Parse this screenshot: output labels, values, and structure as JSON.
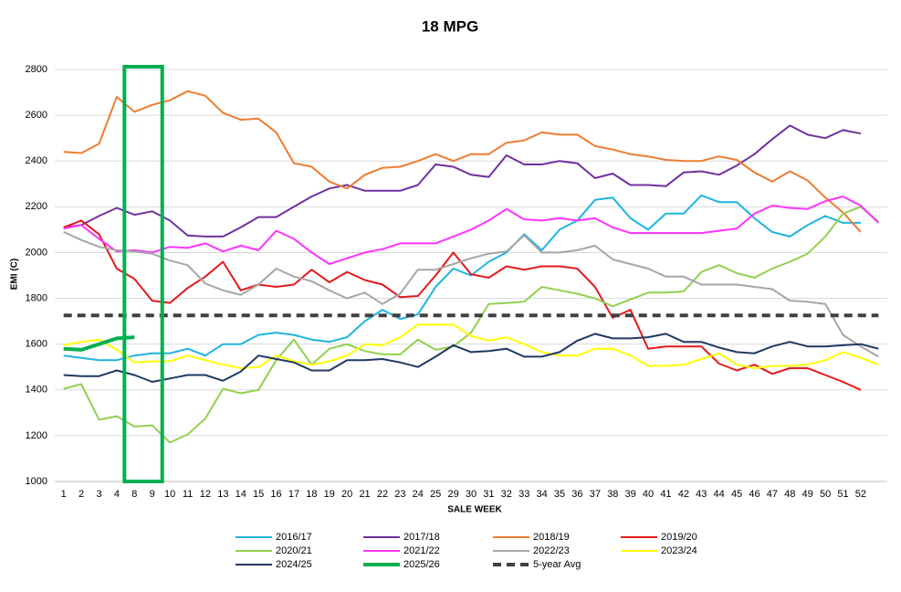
{
  "chart_data": {
    "type": "line",
    "title": "18 MPG",
    "x_label": "SALE WEEK",
    "y_label": "EMI (C)",
    "categories": [
      1,
      2,
      3,
      4,
      8,
      9,
      10,
      11,
      12,
      13,
      14,
      15,
      16,
      17,
      18,
      19,
      20,
      21,
      22,
      23,
      24,
      25,
      29,
      30,
      31,
      32,
      33,
      34,
      35,
      36,
      37,
      38,
      39,
      40,
      41,
      42,
      43,
      44,
      45,
      46,
      47,
      48,
      49,
      50,
      51,
      52,
      null
    ],
    "ylim": [
      1000,
      2800
    ],
    "yticks": [
      1000,
      1200,
      1400,
      1600,
      1800,
      2000,
      2200,
      2400,
      2600,
      2800
    ],
    "grid": true,
    "legend": "bottom",
    "series": [
      {
        "name": "2016/17",
        "color": "#1fb4e0",
        "values": [
          1550,
          1540,
          1530,
          1530,
          1550,
          1560,
          1560,
          1580,
          1550,
          1600,
          1600,
          1640,
          1650,
          1640,
          1620,
          1610,
          1630,
          1700,
          1750,
          1710,
          1730,
          1850,
          1930,
          1900,
          1960,
          2000,
          2080,
          2010,
          2100,
          2140,
          2230,
          2240,
          2150,
          2100,
          2170,
          2170,
          2250,
          2220,
          2220,
          2150,
          2090,
          2070,
          2120,
          2160,
          2130,
          2130,
          null
        ]
      },
      {
        "name": "2017/18",
        "color": "#7030a0",
        "values": [
          2110,
          2120,
          2160,
          2195,
          2165,
          2180,
          2140,
          2075,
          2070,
          2070,
          2110,
          2155,
          2155,
          2200,
          2245,
          2280,
          2295,
          2270,
          2270,
          2270,
          2295,
          2385,
          2375,
          2340,
          2330,
          2425,
          2385,
          2385,
          2400,
          2390,
          2325,
          2345,
          2295,
          2295,
          2290,
          2350,
          2355,
          2340,
          2380,
          2430,
          2495,
          2555,
          2515,
          2500,
          2535,
          2520,
          null
        ]
      },
      {
        "name": "2018/19",
        "color": "#ed7d31",
        "values": [
          2440,
          2435,
          2475,
          2680,
          2615,
          2645,
          2665,
          2705,
          2685,
          2610,
          2580,
          2585,
          2525,
          2390,
          2375,
          2310,
          2280,
          2340,
          2370,
          2375,
          2400,
          2430,
          2400,
          2430,
          2430,
          2480,
          2490,
          2525,
          2515,
          2515,
          2465,
          2450,
          2430,
          2420,
          2405,
          2400,
          2400,
          2420,
          2405,
          2350,
          2310,
          2355,
          2315,
          2240,
          2175,
          2090,
          null
        ]
      },
      {
        "name": "2019/20",
        "color": "#e31a1c",
        "values": [
          2110,
          2140,
          2080,
          1930,
          1885,
          1790,
          1780,
          1845,
          1895,
          1960,
          1835,
          1860,
          1850,
          1860,
          1925,
          1870,
          1915,
          1880,
          1860,
          1805,
          1810,
          1900,
          2000,
          1905,
          1890,
          1940,
          1925,
          1940,
          1940,
          1930,
          1850,
          1715,
          1750,
          1580,
          1590,
          1590,
          1590,
          1515,
          1485,
          1510,
          1470,
          1495,
          1495,
          1465,
          1435,
          1400,
          null
        ]
      },
      {
        "name": "2020/21",
        "color": "#92d050",
        "values": [
          1405,
          1425,
          1270,
          1285,
          1240,
          1245,
          1170,
          1205,
          1275,
          1405,
          1385,
          1400,
          1530,
          1620,
          1510,
          1580,
          1600,
          1570,
          1555,
          1555,
          1620,
          1575,
          1590,
          1650,
          1775,
          1780,
          1785,
          1850,
          1835,
          1820,
          1800,
          1765,
          1795,
          1825,
          1825,
          1830,
          1915,
          1945,
          1910,
          1890,
          1930,
          1960,
          1995,
          2070,
          2170,
          2200,
          2135
        ]
      },
      {
        "name": "2021/22",
        "color": "#ff33ff",
        "values": [
          2105,
          2120,
          2060,
          2005,
          2010,
          2000,
          2025,
          2020,
          2040,
          2005,
          2030,
          2010,
          2095,
          2060,
          2000,
          1950,
          1975,
          2000,
          2015,
          2040,
          2040,
          2040,
          2070,
          2100,
          2140,
          2190,
          2145,
          2140,
          2150,
          2140,
          2150,
          2110,
          2085,
          2085,
          2085,
          2085,
          2085,
          2095,
          2105,
          2170,
          2205,
          2195,
          2190,
          2225,
          2245,
          2205,
          2130
        ]
      },
      {
        "name": "2022/23",
        "color": "#a6a6a6",
        "values": [
          2090,
          2055,
          2025,
          2010,
          2005,
          1995,
          1965,
          1945,
          1865,
          1835,
          1815,
          1860,
          1930,
          1895,
          1875,
          1835,
          1800,
          1825,
          1775,
          1820,
          1925,
          1925,
          1950,
          1975,
          1995,
          2005,
          2075,
          2000,
          2000,
          2010,
          2030,
          1970,
          1950,
          1930,
          1895,
          1895,
          1860,
          1860,
          1860,
          1850,
          1840,
          1790,
          1785,
          1775,
          1640,
          1590,
          1545
        ]
      },
      {
        "name": "2023/24",
        "color": "#ffff00",
        "values": [
          1595,
          1610,
          1620,
          1575,
          1520,
          1525,
          1525,
          1550,
          1530,
          1510,
          1495,
          1500,
          1550,
          1525,
          1510,
          1525,
          1550,
          1600,
          1595,
          1630,
          1685,
          1685,
          1685,
          1635,
          1615,
          1630,
          1600,
          1565,
          1550,
          1550,
          1580,
          1580,
          1550,
          1505,
          1505,
          1510,
          1535,
          1560,
          1510,
          1495,
          1505,
          1505,
          1510,
          1530,
          1565,
          1540,
          1510
        ]
      },
      {
        "name": "2024/25",
        "color": "#1f3864",
        "values": [
          1465,
          1460,
          1460,
          1485,
          1465,
          1435,
          1450,
          1465,
          1465,
          1440,
          1480,
          1550,
          1535,
          1520,
          1485,
          1485,
          1530,
          1530,
          1535,
          1520,
          1500,
          1545,
          1595,
          1565,
          1570,
          1580,
          1545,
          1545,
          1565,
          1615,
          1645,
          1625,
          1625,
          1630,
          1645,
          1610,
          1610,
          1585,
          1565,
          1560,
          1590,
          1610,
          1590,
          1590,
          1595,
          1600,
          1580
        ]
      },
      {
        "name": "2025/26",
        "color": "#00b050",
        "line_width": 4,
        "values": [
          1580,
          1575,
          1600,
          1625,
          1630,
          null,
          null,
          null,
          null,
          null,
          null,
          null,
          null,
          null,
          null,
          null,
          null,
          null,
          null,
          null,
          null,
          null,
          null,
          null,
          null,
          null,
          null,
          null,
          null,
          null,
          null,
          null,
          null,
          null,
          null,
          null,
          null,
          null,
          null,
          null,
          null,
          null,
          null,
          null,
          null,
          null,
          null
        ]
      },
      {
        "name": "5-year Avg",
        "color": "#404040",
        "line_width": 4,
        "dashed": true,
        "values": [
          1725,
          1725,
          1725,
          1725,
          1725,
          1725,
          1725,
          1725,
          1725,
          1725,
          1725,
          1725,
          1725,
          1725,
          1725,
          1725,
          1725,
          1725,
          1725,
          1725,
          1725,
          1725,
          1725,
          1725,
          1725,
          1725,
          1725,
          1725,
          1725,
          1725,
          1725,
          1725,
          1725,
          1725,
          1725,
          1725,
          1725,
          1725,
          1725,
          1725,
          1725,
          1725,
          1725,
          1725,
          1725,
          1725,
          1725
        ]
      }
    ]
  }
}
